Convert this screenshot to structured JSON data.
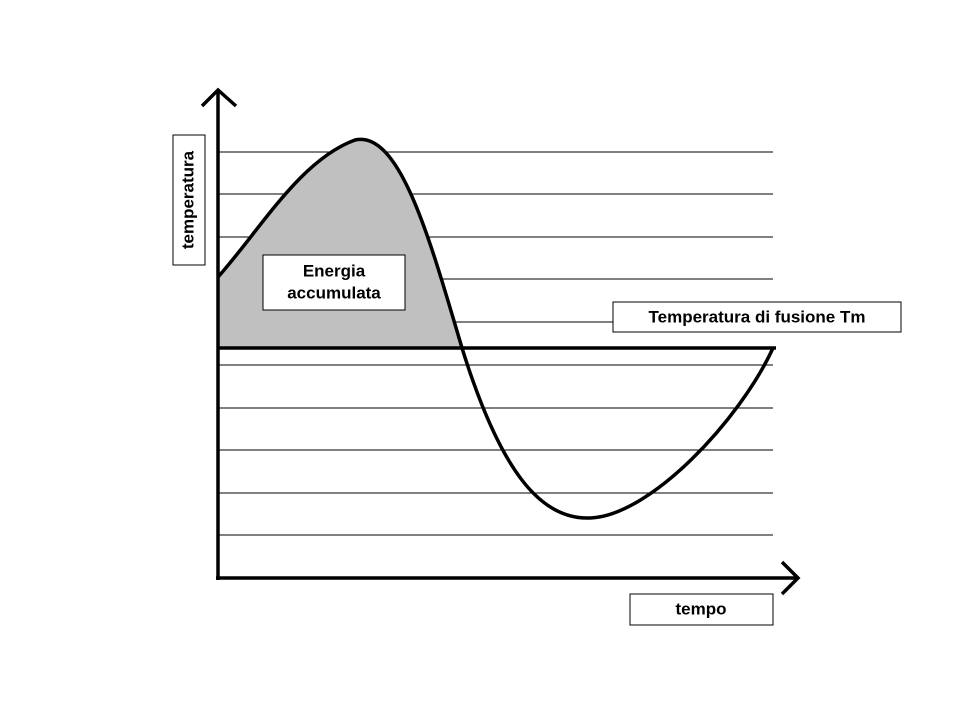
{
  "y_axis_label": "temperatura",
  "x_axis_label": "tempo",
  "area_label": [
    "Energia",
    "accumulata"
  ],
  "line_label": "Temperatura di fusione Tm"
}
